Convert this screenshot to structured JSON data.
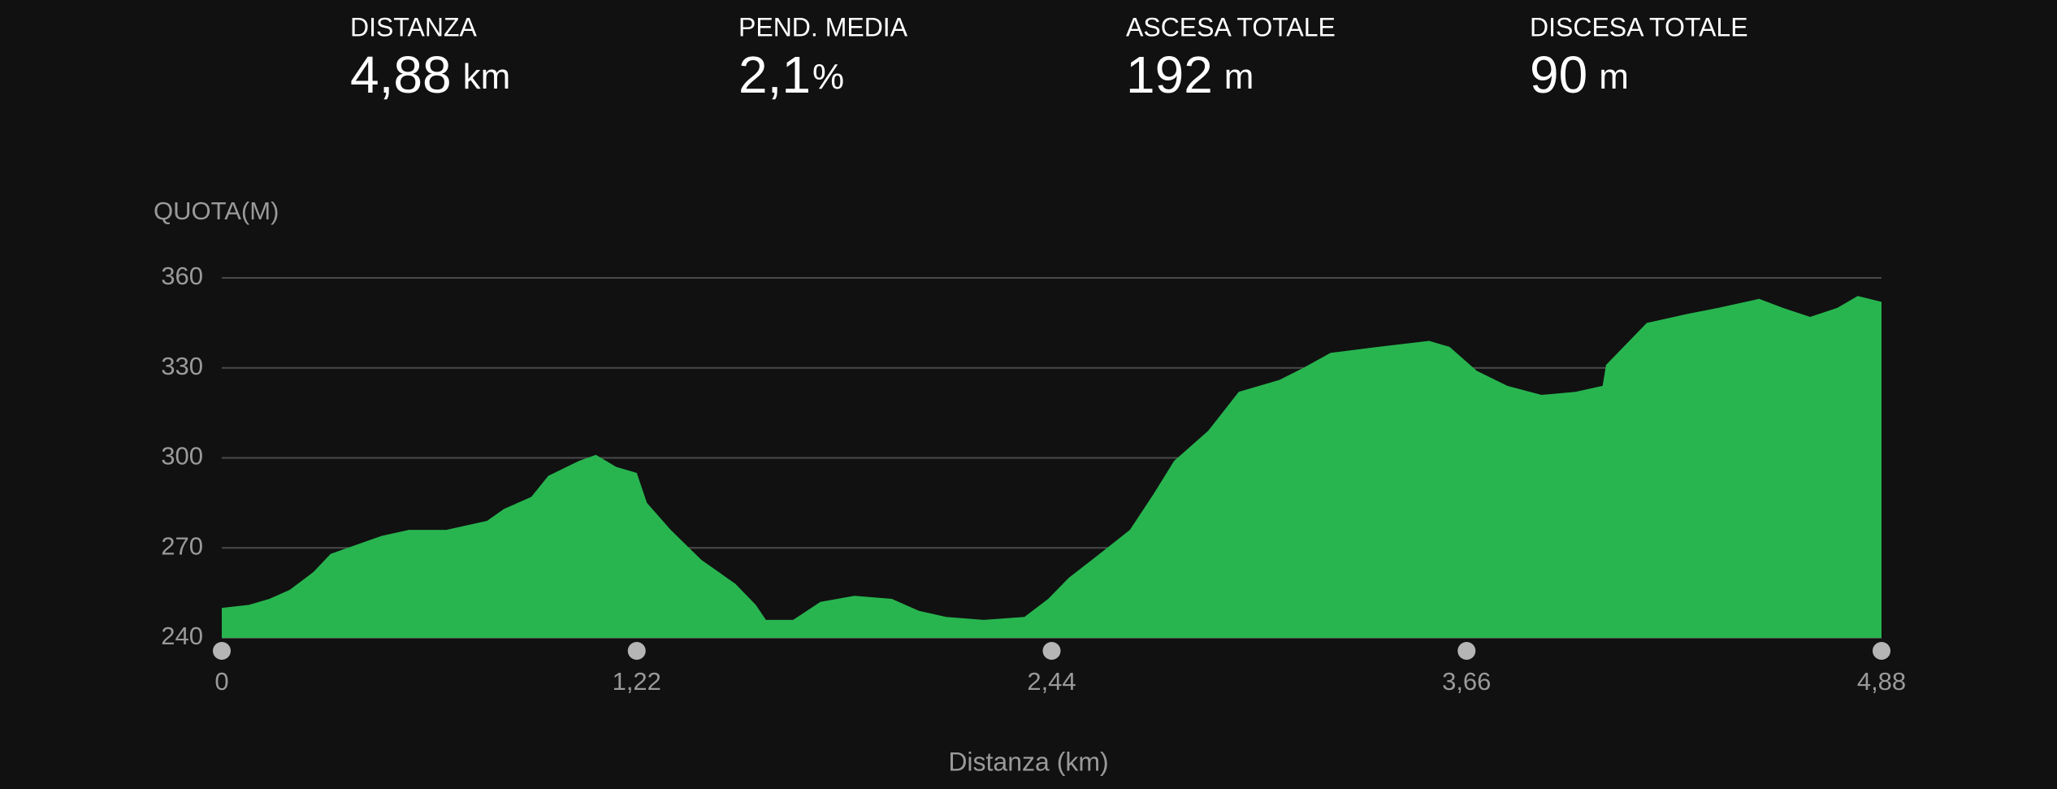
{
  "stats": [
    {
      "label": "DISTANZA",
      "value": "4,88",
      "unit": "km"
    },
    {
      "label": "PEND. MEDIA",
      "value": "2,1",
      "unit": "%"
    },
    {
      "label": "ASCESA TOTALE",
      "value": "192",
      "unit": "m"
    },
    {
      "label": "DISCESA TOTALE",
      "value": "90",
      "unit": "m"
    }
  ],
  "chart_data": {
    "type": "area",
    "ylabel": "QUOTA(M)",
    "xlabel": "Distanza (km)",
    "color": "#28b550",
    "grid": true,
    "xlim": [
      0,
      4.88
    ],
    "ylim": [
      240,
      360
    ],
    "yticks": [
      240,
      270,
      300,
      330,
      360
    ],
    "xticks": [
      0,
      {
        "value": 1.22,
        "label": "1,22"
      },
      {
        "value": 2.44,
        "label": "2,44"
      },
      {
        "value": 3.66,
        "label": "3,66"
      },
      {
        "value": 4.88,
        "label": "4,88"
      }
    ],
    "x": [
      0,
      0.08,
      0.14,
      0.2,
      0.27,
      0.32,
      0.47,
      0.55,
      0.66,
      0.78,
      0.83,
      0.91,
      0.96,
      1.05,
      1.1,
      1.16,
      1.22,
      1.25,
      1.32,
      1.41,
      1.51,
      1.57,
      1.6,
      1.68,
      1.76,
      1.86,
      1.97,
      2.05,
      2.13,
      2.24,
      2.36,
      2.43,
      2.49,
      2.57,
      2.67,
      2.74,
      2.8,
      2.9,
      2.99,
      3.11,
      3.18,
      3.26,
      3.4,
      3.55,
      3.61,
      3.69,
      3.78,
      3.88,
      3.98,
      4.06,
      4.07,
      4.19,
      4.31,
      4.4,
      4.52,
      4.59,
      4.67,
      4.75,
      4.81,
      4.88
    ],
    "values": [
      250,
      251,
      253,
      256,
      262,
      268,
      274,
      276,
      276,
      279,
      283,
      287,
      294,
      299,
      301,
      297,
      295,
      285,
      276,
      266,
      258,
      251,
      246,
      246,
      252,
      254,
      253,
      249,
      247,
      246,
      247,
      253,
      260,
      267,
      276,
      288,
      299,
      309,
      322,
      326,
      330,
      335,
      337,
      339,
      337,
      329,
      324,
      321,
      322,
      324,
      331,
      345,
      348,
      350,
      353,
      350,
      347,
      350,
      354,
      352
    ]
  }
}
